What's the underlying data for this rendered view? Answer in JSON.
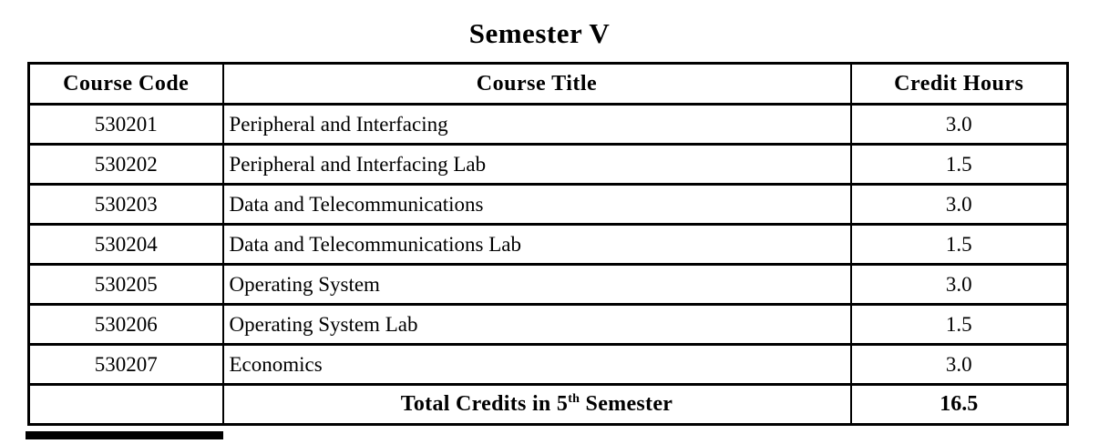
{
  "title": "Semester V",
  "colors": {
    "border": "#000000",
    "text": "#000000",
    "background": "#ffffff"
  },
  "table": {
    "headers": [
      "Course Code",
      "Course Title",
      "Credit Hours"
    ],
    "rows": [
      {
        "code": "530201",
        "title": "Peripheral and Interfacing",
        "credits": "3.0"
      },
      {
        "code": "530202",
        "title": "Peripheral and Interfacing Lab",
        "credits": "1.5"
      },
      {
        "code": "530203",
        "title": "Data and Telecommunications",
        "credits": "3.0"
      },
      {
        "code": "530204",
        "title": "Data and Telecommunications Lab",
        "credits": "1.5"
      },
      {
        "code": "530205",
        "title": "Operating System",
        "credits": "3.0"
      },
      {
        "code": "530206",
        "title": "Operating System Lab",
        "credits": "1.5"
      },
      {
        "code": "530207",
        "title": "Economics",
        "credits": "3.0"
      }
    ],
    "total": {
      "label_prefix": "Total Credits in 5",
      "label_superscript": "th",
      "label_suffix": " Semester",
      "value": "16.5"
    }
  }
}
